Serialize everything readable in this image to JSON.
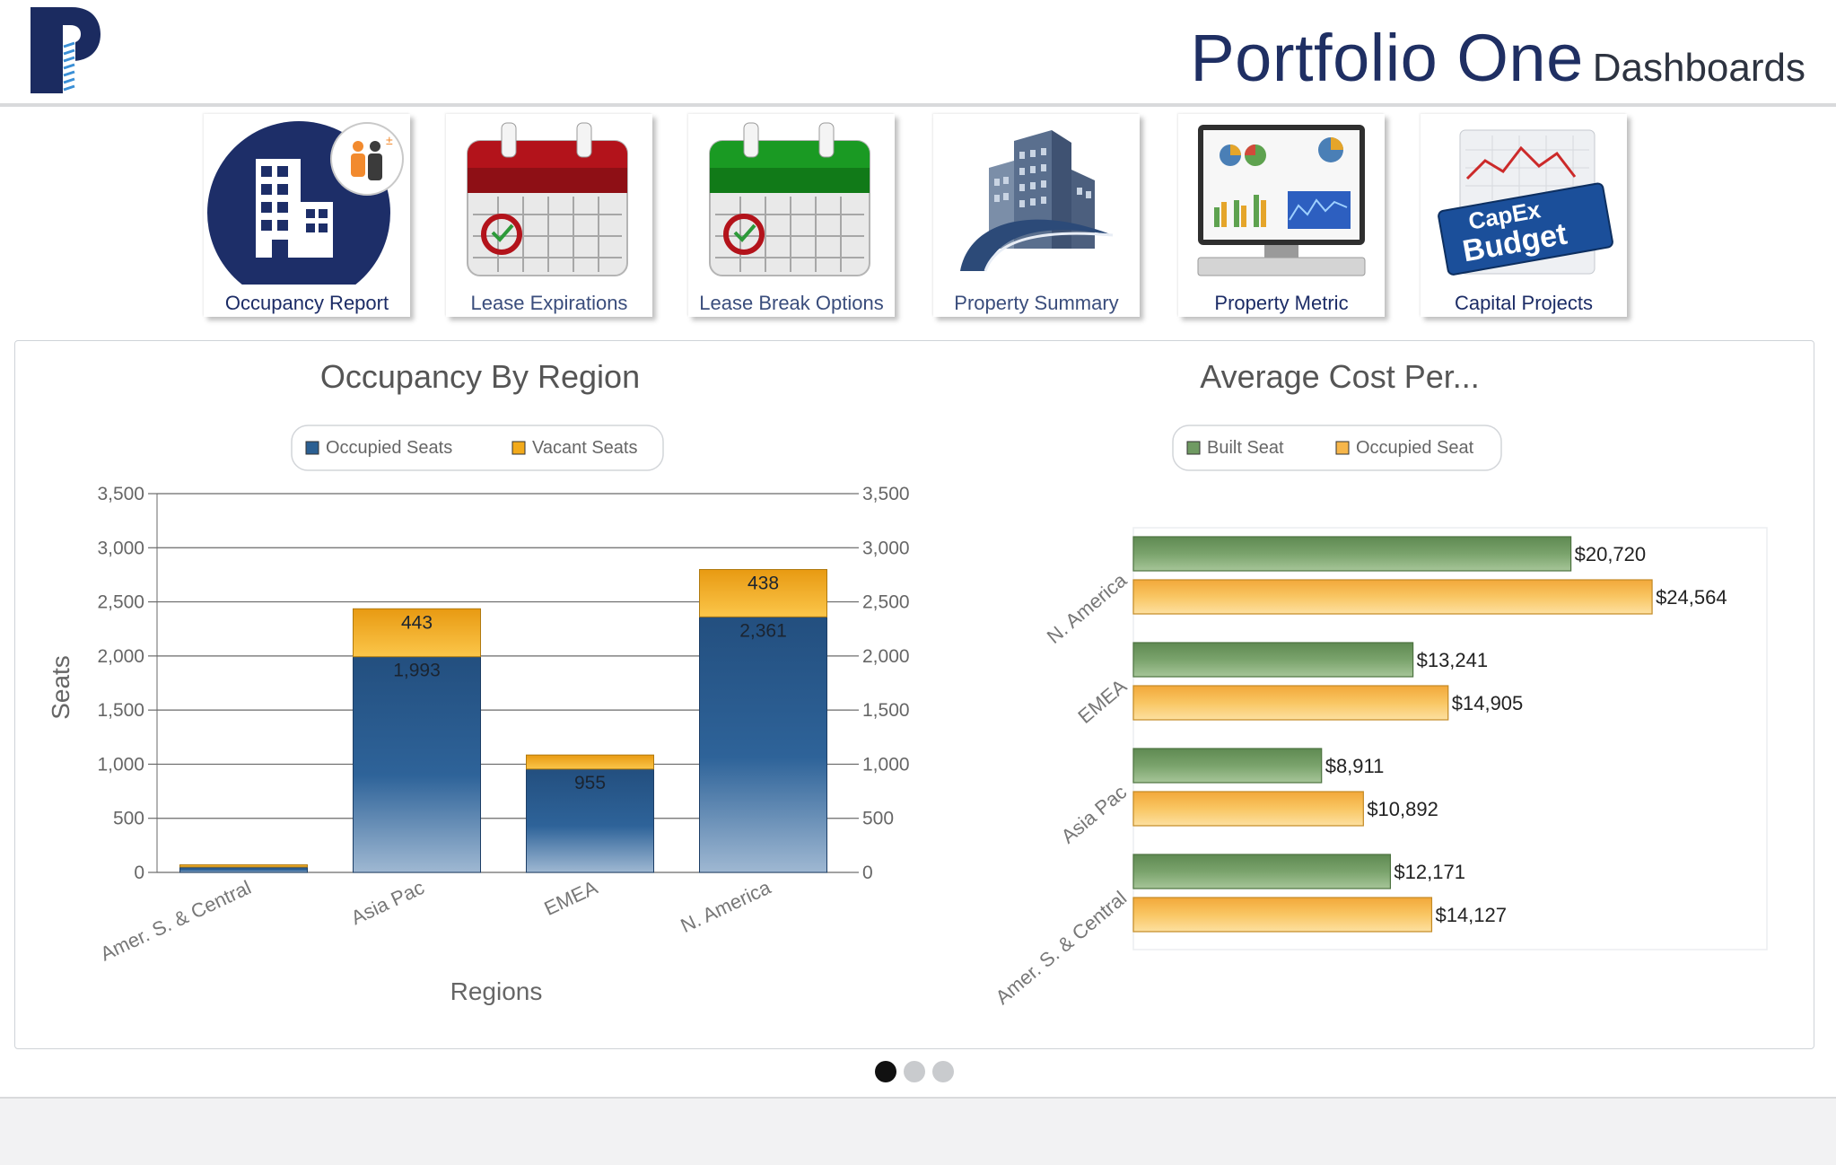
{
  "header": {
    "brand_main": "Portfolio One",
    "brand_sub": "Dashboards",
    "logo_icon": "portfolio-one-logo-icon",
    "colors": {
      "brand_blue": "#1f2f63",
      "logo_blue": "#1b2b60",
      "logo_stripe": "#3a8fd6"
    }
  },
  "nav": {
    "tiles": [
      {
        "label": "Occupancy Report",
        "icon": "building-people-icon"
      },
      {
        "label": "Lease Expirations",
        "icon": "red-calendar-icon"
      },
      {
        "label": "Lease Break Options",
        "icon": "green-calendar-icon"
      },
      {
        "label": "Property Summary",
        "icon": "skyscraper-icon"
      },
      {
        "label": "Property Metric",
        "icon": "monitor-charts-icon"
      },
      {
        "label": "Capital Projects",
        "icon": "capex-budget-icon"
      }
    ]
  },
  "pager": {
    "count": 3,
    "active": 0
  },
  "chart_data": [
    {
      "type": "bar",
      "stacked": true,
      "orientation": "vertical",
      "title": "Occupancy By Region",
      "xlabel": "Regions",
      "ylabel": "Seats",
      "categories": [
        "Amer. S. & Central",
        "Asia Pac",
        "EMEA",
        "N. America"
      ],
      "series": [
        {
          "name": "Occupied Seats",
          "color": "#2b5f92",
          "values": [
            50,
            1993,
            955,
            2361
          ],
          "labels": [
            "",
            "1,993",
            "955",
            "2,361"
          ]
        },
        {
          "name": "Vacant Seats",
          "color": "#f2aa1b",
          "values": [
            20,
            443,
            130,
            438
          ],
          "labels": [
            "",
            "443",
            "",
            "438"
          ]
        }
      ],
      "ylim": [
        0,
        3500
      ],
      "yticks": [
        0,
        500,
        1000,
        1500,
        2000,
        2500,
        3000,
        3500
      ],
      "ytick_labels": [
        "0",
        "500",
        "1,000",
        "1,500",
        "2,000",
        "2,500",
        "3,000",
        "3,500"
      ],
      "secondary_axis": true,
      "grid": true,
      "legend": "top-center"
    },
    {
      "type": "bar",
      "orientation": "horizontal",
      "title": "Average Cost Per...",
      "categories": [
        "N. America",
        "EMEA",
        "Asia Pac",
        "Amer. S. & Central"
      ],
      "series": [
        {
          "name": "Built Seat",
          "color": "#6f9a62",
          "values": [
            20720,
            13241,
            8911,
            12171
          ],
          "labels": [
            "$20,720",
            "$13,241",
            "$8,911",
            "$12,171"
          ]
        },
        {
          "name": "Occupied Seat",
          "color": "#f6b64a",
          "values": [
            24564,
            14905,
            10892,
            14127
          ],
          "labels": [
            "$24,564",
            "$14,905",
            "$10,892",
            "$14,127"
          ]
        }
      ],
      "xlim": [
        0,
        30000
      ],
      "grid": false,
      "legend": "top-center"
    }
  ]
}
